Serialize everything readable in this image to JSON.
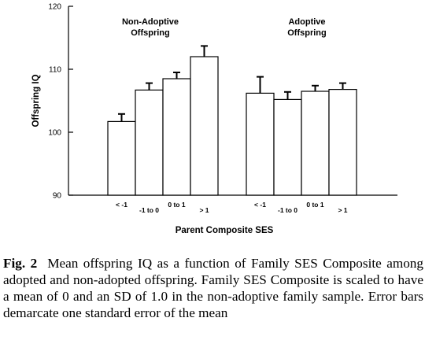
{
  "chart_data": {
    "type": "bar",
    "ylabel": "Offspring IQ",
    "xlabel": "Parent Composite SES",
    "ylim": [
      90,
      120
    ],
    "yticks": [
      90,
      100,
      110,
      120
    ],
    "grid": false,
    "groups": [
      {
        "name": "Non-Adoptive Offspring",
        "label_lines": [
          "Non-Adoptive",
          "Offspring"
        ],
        "categories": [
          "< -1",
          "-1 to 0",
          "0 to 1",
          "> 1"
        ],
        "values": [
          101.7,
          106.7,
          108.5,
          112.0
        ],
        "errors": [
          1.2,
          1.1,
          1.0,
          1.7
        ]
      },
      {
        "name": "Adoptive Offspring",
        "label_lines": [
          "Adoptive",
          "Offspring"
        ],
        "categories": [
          "< -1",
          "-1 to 0",
          "0 to 1",
          "> 1"
        ],
        "values": [
          106.2,
          105.2,
          106.5,
          106.8
        ],
        "errors": [
          2.6,
          1.2,
          0.9,
          1.0
        ]
      }
    ]
  },
  "caption": {
    "label": "Fig. 2",
    "text": "Mean offspring IQ as a function of Family SES Composite among adopted and non-adopted offspring. Family SES Composite is scaled to have a mean of 0 and an SD of 1.0 in the non-adoptive family sample. Error bars demarcate one standard error of the mean"
  }
}
